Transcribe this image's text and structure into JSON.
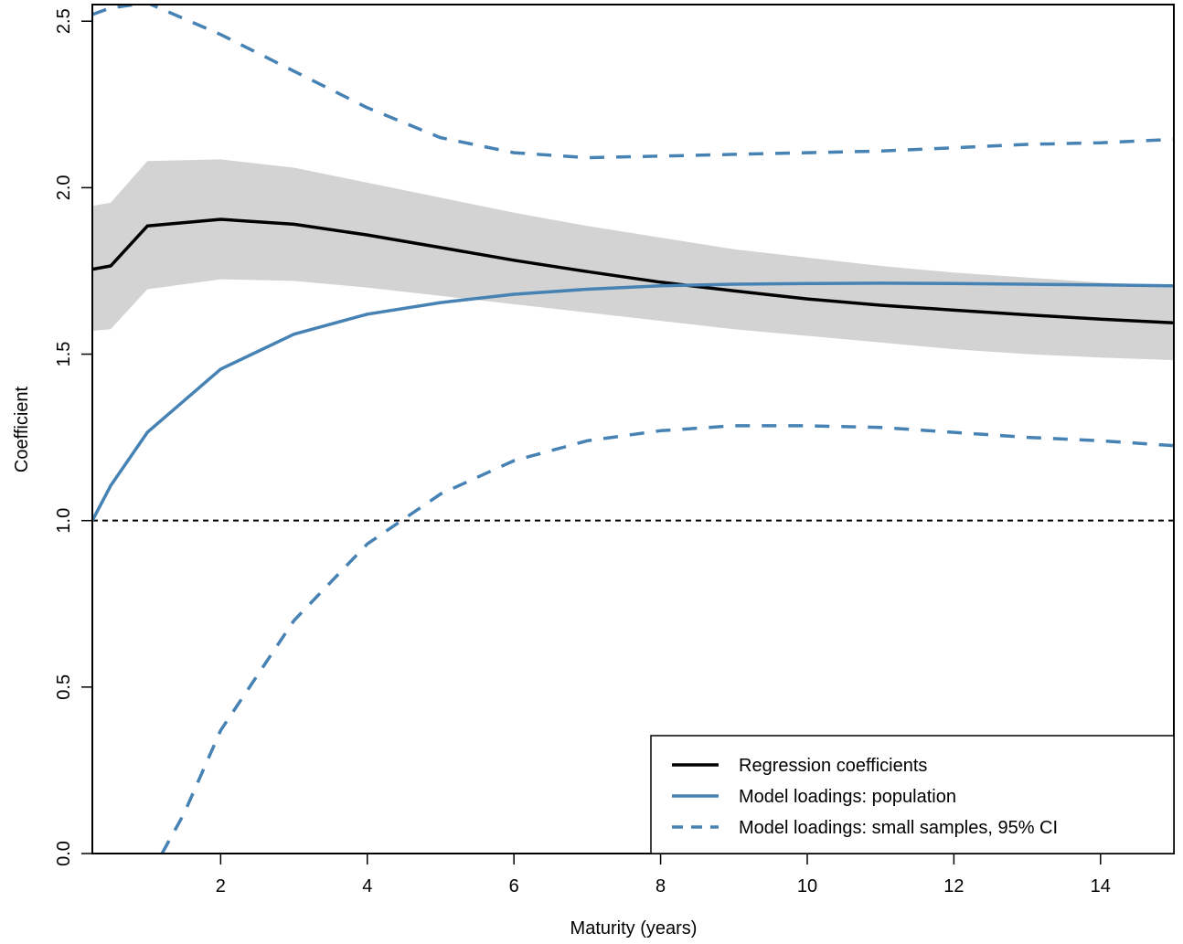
{
  "chart_data": {
    "type": "line",
    "xlabel": "Maturity (years)",
    "ylabel": "Coefficient",
    "xlim": [
      0.25,
      15
    ],
    "ylim": [
      0,
      2.55
    ],
    "x_ticks": [
      2,
      4,
      6,
      8,
      10,
      12,
      14
    ],
    "y_ticks": [
      0.0,
      0.5,
      1.0,
      1.5,
      2.0,
      2.5
    ],
    "x_tick_labels": [
      "2",
      "4",
      "6",
      "8",
      "10",
      "12",
      "14"
    ],
    "y_tick_labels": [
      "0.0",
      "0.5",
      "1.0",
      "1.5",
      "2.0",
      "2.5"
    ],
    "reference_line": {
      "y": 1.0,
      "style": "dotted"
    },
    "x": [
      0.25,
      0.5,
      1,
      2,
      3,
      4,
      5,
      6,
      7,
      8,
      9,
      10,
      11,
      12,
      13,
      14,
      15
    ],
    "band": {
      "lower": [
        1.57,
        1.575,
        1.695,
        1.725,
        1.72,
        1.7,
        1.675,
        1.65,
        1.625,
        1.6,
        1.575,
        1.555,
        1.535,
        1.515,
        1.5,
        1.49,
        1.482
      ],
      "upper": [
        1.945,
        1.955,
        2.08,
        2.085,
        2.06,
        2.015,
        1.97,
        1.925,
        1.885,
        1.85,
        1.815,
        1.79,
        1.765,
        1.745,
        1.73,
        1.715,
        1.705
      ]
    },
    "series": [
      {
        "name": "Regression coefficients",
        "style": "solid",
        "values": [
          1.755,
          1.765,
          1.885,
          1.905,
          1.89,
          1.858,
          1.82,
          1.782,
          1.748,
          1.716,
          1.69,
          1.666,
          1.647,
          1.632,
          1.618,
          1.605,
          1.594
        ]
      },
      {
        "name": "Model loadings: population",
        "style": "solid",
        "values": [
          1.0,
          1.105,
          1.265,
          1.455,
          1.56,
          1.62,
          1.655,
          1.68,
          1.695,
          1.705,
          1.71,
          1.712,
          1.713,
          1.712,
          1.71,
          1.708,
          1.705
        ]
      },
      {
        "name": "Model loadings: small samples, 95% CI",
        "style": "dashed",
        "values": [
          2.52,
          2.54,
          2.555,
          2.46,
          2.35,
          2.24,
          2.15,
          2.105,
          2.09,
          2.095,
          2.1,
          2.105,
          2.11,
          2.12,
          2.13,
          2.135,
          2.145
        ]
      },
      {
        "name": "",
        "style": "dashed",
        "x": [
          1.2,
          1.5,
          2,
          3,
          4,
          5,
          6,
          7,
          8,
          9,
          10,
          11,
          12,
          13,
          14,
          15
        ],
        "values": [
          0.0,
          0.12,
          0.37,
          0.7,
          0.93,
          1.08,
          1.18,
          1.24,
          1.27,
          1.285,
          1.285,
          1.28,
          1.265,
          1.25,
          1.24,
          1.225
        ]
      }
    ],
    "legend": {
      "position": "bottom-right",
      "entries": [
        {
          "label": "Regression coefficients",
          "style": "solid",
          "color": "#000000"
        },
        {
          "label": "Model loadings: population",
          "style": "solid",
          "color": "#4682B4"
        },
        {
          "label": "Model loadings: small samples, 95% CI",
          "style": "dashed",
          "color": "#4682B4"
        }
      ]
    },
    "colors": {
      "regression": "#000000",
      "model": "#4682B4",
      "band": "#D3D3D3"
    }
  }
}
